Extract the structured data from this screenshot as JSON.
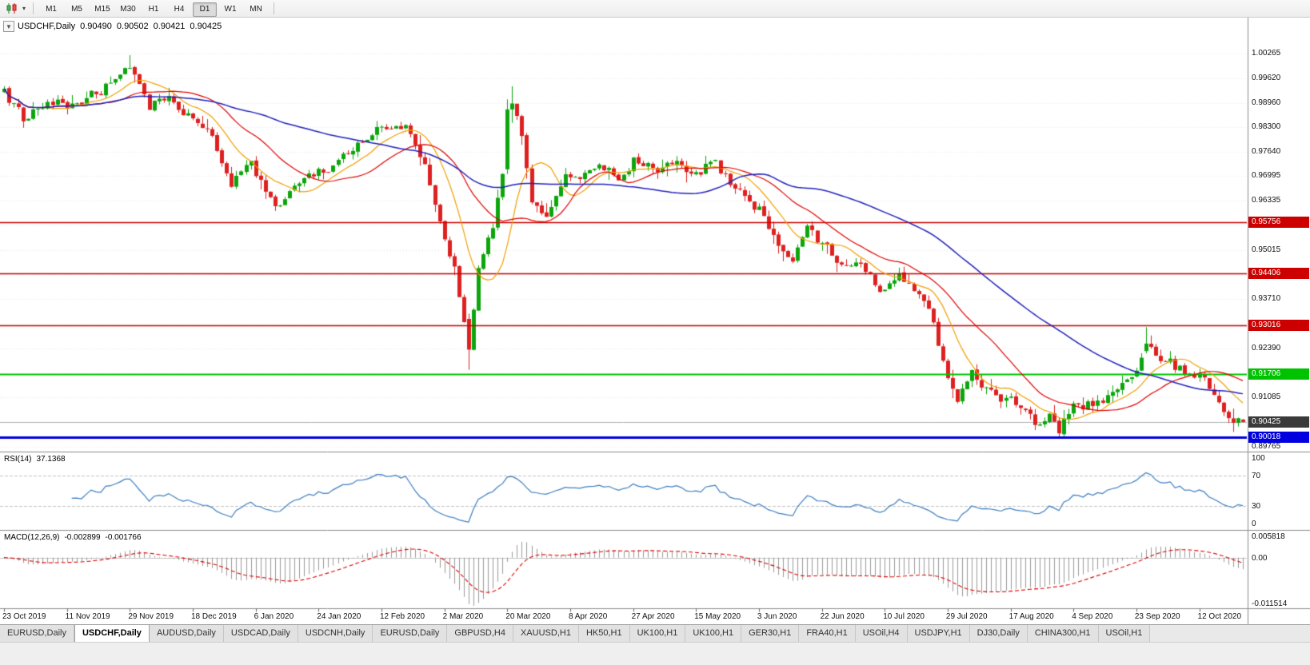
{
  "icons": {
    "one_click_trading": "▼",
    "dropdown_caret": "▾"
  },
  "toolbar": {
    "timeframes": [
      "M1",
      "M5",
      "M15",
      "M30",
      "H1",
      "H4",
      "D1",
      "W1",
      "MN"
    ],
    "active_timeframe": "D1"
  },
  "chart_header": {
    "title": "USDCHF,Daily",
    "open": "0.90490",
    "high": "0.90502",
    "low": "0.90421",
    "close": "0.90425"
  },
  "chart_data": {
    "type": "candlestick",
    "symbol": "USDCHF",
    "timeframe": "Daily",
    "n_candles": 257,
    "candle_colors": {
      "bull": "#0ca50c",
      "bear": "#de2020"
    },
    "y_axis_labels": [
      "1.00265",
      "0.99620",
      "0.98960",
      "0.98300",
      "0.97640",
      "0.96995",
      "0.96335",
      "0.95675",
      "0.95015",
      "0.94370",
      "0.93710",
      "0.93050",
      "0.92390",
      "0.91730",
      "0.91085",
      "0.90425",
      "0.89765"
    ],
    "x_axis_labels": [
      [
        0,
        "23 Oct 2019"
      ],
      [
        13,
        "11 Nov 2019"
      ],
      [
        26,
        "29 Nov 2019"
      ],
      [
        39,
        "18 Dec 2019"
      ],
      [
        52,
        "6 Jan 2020"
      ],
      [
        65,
        "24 Jan 2020"
      ],
      [
        78,
        "12 Feb 2020"
      ],
      [
        91,
        "2 Mar 2020"
      ],
      [
        104,
        "20 Mar 2020"
      ],
      [
        117,
        "8 Apr 2020"
      ],
      [
        130,
        "27 Apr 2020"
      ],
      [
        143,
        "15 May 2020"
      ],
      [
        156,
        "3 Jun 2020"
      ],
      [
        169,
        "22 Jun 2020"
      ],
      [
        182,
        "10 Jul 2020"
      ],
      [
        195,
        "29 Jul 2020"
      ],
      [
        208,
        "17 Aug 2020"
      ],
      [
        221,
        "4 Sep 2020"
      ],
      [
        234,
        "23 Sep 2020"
      ],
      [
        247,
        "12 Oct 2020"
      ]
    ],
    "price_path_anchors": [
      [
        0,
        0.9925
      ],
      [
        4,
        0.9848
      ],
      [
        9,
        0.9902
      ],
      [
        13,
        0.9885
      ],
      [
        20,
        0.9932
      ],
      [
        26,
        1.0005
      ],
      [
        30,
        0.9882
      ],
      [
        34,
        0.9916
      ],
      [
        39,
        0.9858
      ],
      [
        43,
        0.98
      ],
      [
        47,
        0.969
      ],
      [
        51,
        0.9722
      ],
      [
        56,
        0.9628
      ],
      [
        60,
        0.9652
      ],
      [
        65,
        0.9712
      ],
      [
        71,
        0.9765
      ],
      [
        78,
        0.9846
      ],
      [
        83,
        0.9832
      ],
      [
        87,
        0.9718
      ],
      [
        90,
        0.96
      ],
      [
        93,
        0.9455
      ],
      [
        95,
        0.932
      ],
      [
        96,
        0.9235
      ],
      [
        98,
        0.9445
      ],
      [
        101,
        0.956
      ],
      [
        103,
        0.972
      ],
      [
        105,
        0.989
      ],
      [
        107,
        0.98
      ],
      [
        109,
        0.9645
      ],
      [
        112,
        0.9605
      ],
      [
        116,
        0.9692
      ],
      [
        119,
        0.9668
      ],
      [
        123,
        0.9735
      ],
      [
        127,
        0.9708
      ],
      [
        130,
        0.9745
      ],
      [
        134,
        0.9712
      ],
      [
        139,
        0.9728
      ],
      [
        143,
        0.9706
      ],
      [
        147,
        0.9738
      ],
      [
        151,
        0.9662
      ],
      [
        156,
        0.9612
      ],
      [
        160,
        0.9532
      ],
      [
        163,
        0.9484
      ],
      [
        166,
        0.9548
      ],
      [
        169,
        0.9508
      ],
      [
        173,
        0.9478
      ],
      [
        177,
        0.9468
      ],
      [
        180,
        0.9422
      ],
      [
        182,
        0.9392
      ],
      [
        185,
        0.9442
      ],
      [
        189,
        0.9388
      ],
      [
        192,
        0.9298
      ],
      [
        195,
        0.914
      ],
      [
        197,
        0.909
      ],
      [
        200,
        0.9158
      ],
      [
        203,
        0.9124
      ],
      [
        206,
        0.9098
      ],
      [
        208,
        0.9108
      ],
      [
        211,
        0.9078
      ],
      [
        214,
        0.9036
      ],
      [
        216,
        0.9068
      ],
      [
        218,
        0.9014
      ],
      [
        221,
        0.9098
      ],
      [
        225,
        0.9088
      ],
      [
        228,
        0.911
      ],
      [
        231,
        0.9162
      ],
      [
        234,
        0.9188
      ],
      [
        236,
        0.925
      ],
      [
        239,
        0.9218
      ],
      [
        242,
        0.9192
      ],
      [
        245,
        0.9164
      ],
      [
        247,
        0.9156
      ],
      [
        250,
        0.9132
      ],
      [
        253,
        0.9074
      ],
      [
        256,
        0.9042
      ]
    ],
    "candle_overrides": {
      "26": [
        null,
        1.0023,
        null,
        null
      ],
      "96": [
        0.9318,
        0.9332,
        0.9182,
        0.9236
      ],
      "104": [
        0.9718,
        0.9905,
        0.9705,
        0.9878
      ],
      "105": [
        0.9878,
        0.994,
        0.9842,
        0.9894
      ],
      "218": [
        0.9046,
        0.9055,
        0.8998,
        0.9012
      ],
      "236": [
        0.9232,
        0.9296,
        0.9226,
        0.9252
      ],
      "256": [
        0.9049,
        0.90502,
        0.90421,
        0.90425
      ]
    },
    "horizontal_levels": [
      {
        "price": 0.95756,
        "label": "0.95756",
        "color": "#cc0000",
        "width": 1.6
      },
      {
        "price": 0.94406,
        "label": "0.94406",
        "color": "#cc0000",
        "width": 1.6
      },
      {
        "price": 0.93016,
        "label": "0.93016",
        "color": "#cc0000",
        "width": 1.6
      },
      {
        "price": 0.91706,
        "label": "0.91706",
        "color": "#00c300",
        "width": 2
      },
      {
        "price": 0.90018,
        "label": "0.90018",
        "color": "#0000e0",
        "width": 3
      }
    ],
    "current_price": {
      "value": 0.90425,
      "label": "0.90425",
      "badge_color": "#3a3a3a"
    },
    "moving_averages": [
      {
        "period": 10,
        "color": "#f0a000",
        "width": 1.2
      },
      {
        "period": 22,
        "color": "#e00000",
        "width": 1.2
      },
      {
        "period": 55,
        "color": "#2121bb",
        "width": 1.5
      }
    ],
    "indicators": {
      "rsi": {
        "name": "RSI(14)",
        "current": "37.1368",
        "period": 14,
        "line_color": "#3e7ec1",
        "level_lines": [
          70,
          30
        ],
        "axis_labels": [
          "100",
          "70",
          "30",
          "0"
        ]
      },
      "macd": {
        "name": "MACD(12,26,9)",
        "current_main": "-0.002899",
        "current_signal": "-0.001766",
        "fast": 12,
        "slow": 26,
        "signal_period": 9,
        "hist_color": "#9a9a9a",
        "signal_color": "#e00000",
        "axis_labels": [
          "0.005818",
          "0.00",
          "-0.011514"
        ],
        "value_range": [
          -0.0122,
          0.0062
        ]
      }
    }
  },
  "bottom_tabs": {
    "active_index": 1,
    "tabs": [
      "EURUSD,Daily",
      "USDCHF,Daily",
      "AUDUSD,Daily",
      "USDCAD,Daily",
      "USDCNH,Daily",
      "EURUSD,Daily",
      "GBPUSD,H4",
      "XAUUSD,H1",
      "HK50,H1",
      "UK100,H1",
      "UK100,H1",
      "GER30,H1",
      "FRA40,H1",
      "USOil,H4",
      "USDJPY,H1",
      "DJ30,Daily",
      "CHINA300,H1",
      "USOil,H1"
    ]
  }
}
